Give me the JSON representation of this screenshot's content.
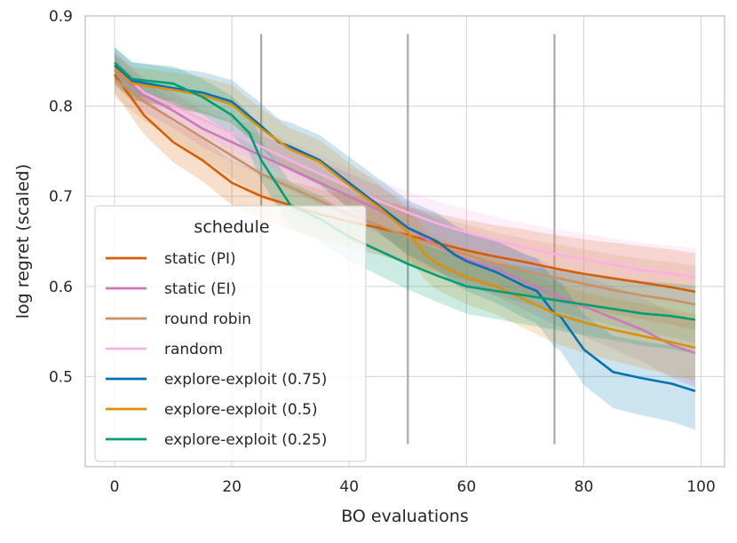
{
  "chart_data": {
    "type": "line",
    "xlabel": "BO evaluations",
    "ylabel": "log regret (scaled)",
    "xlim": [
      -5,
      104
    ],
    "ylim": [
      0.4,
      0.9
    ],
    "xticks": [
      0,
      20,
      40,
      60,
      80,
      100
    ],
    "yticks": [
      0.5,
      0.6,
      0.7,
      0.8,
      0.9
    ],
    "xtick_labels": [
      "0",
      "20",
      "40",
      "60",
      "80",
      "100"
    ],
    "ytick_labels": [
      "0.5",
      "0.6",
      "0.7",
      "0.8",
      "0.9"
    ],
    "grid": true,
    "vlines": {
      "x": [
        25,
        50,
        75
      ],
      "ymin": 0.425,
      "ymax": 0.88,
      "color": "#a8a8a8"
    },
    "legend": {
      "title": "schedule",
      "position": "lower-left"
    },
    "series": [
      {
        "name": "static (PI)",
        "color": "#d55e00",
        "x": [
          0,
          5,
          10,
          15,
          20,
          25,
          30,
          35,
          40,
          45,
          50,
          55,
          60,
          65,
          70,
          75,
          80,
          85,
          90,
          95,
          99
        ],
        "y": [
          0.835,
          0.79,
          0.76,
          0.74,
          0.715,
          0.7,
          0.69,
          0.68,
          0.672,
          0.665,
          0.657,
          0.648,
          0.64,
          0.633,
          0.627,
          0.62,
          0.614,
          0.609,
          0.604,
          0.599,
          0.594
        ],
        "band": 0.04
      },
      {
        "name": "static (EI)",
        "color": "#cc78bc",
        "x": [
          0,
          5,
          10,
          15,
          20,
          25,
          30,
          35,
          40,
          45,
          50,
          55,
          60,
          65,
          70,
          75,
          80,
          85,
          90,
          95,
          99
        ],
        "y": [
          0.84,
          0.812,
          0.795,
          0.775,
          0.76,
          0.745,
          0.73,
          0.715,
          0.7,
          0.685,
          0.665,
          0.645,
          0.63,
          0.62,
          0.605,
          0.59,
          0.578,
          0.565,
          0.552,
          0.535,
          0.526
        ],
        "band": 0.035
      },
      {
        "name": "round robin",
        "color": "#ca9161",
        "x": [
          0,
          5,
          10,
          15,
          20,
          25,
          30,
          35,
          40,
          45,
          50,
          55,
          60,
          65,
          70,
          75,
          80,
          85,
          90,
          95,
          99
        ],
        "y": [
          0.83,
          0.805,
          0.785,
          0.765,
          0.745,
          0.725,
          0.71,
          0.695,
          0.68,
          0.668,
          0.655,
          0.645,
          0.635,
          0.625,
          0.617,
          0.61,
          0.603,
          0.596,
          0.59,
          0.585,
          0.58
        ],
        "band": 0.04
      },
      {
        "name": "random",
        "color": "#fbafe4",
        "x": [
          0,
          5,
          10,
          15,
          20,
          25,
          30,
          35,
          40,
          45,
          50,
          55,
          60,
          65,
          70,
          75,
          80,
          85,
          90,
          95,
          99
        ],
        "y": [
          0.845,
          0.815,
          0.8,
          0.785,
          0.77,
          0.755,
          0.74,
          0.725,
          0.71,
          0.695,
          0.682,
          0.67,
          0.66,
          0.651,
          0.643,
          0.636,
          0.63,
          0.624,
          0.618,
          0.614,
          0.61
        ],
        "band": 0.03
      },
      {
        "name": "explore-exploit (0.75)",
        "color": "#0173b2",
        "x": [
          0,
          3,
          10,
          15,
          20,
          25,
          28,
          30,
          35,
          40,
          45,
          50,
          55,
          58,
          60,
          65,
          70,
          72,
          75,
          76,
          80,
          85,
          90,
          95,
          99
        ],
        "y": [
          0.845,
          0.828,
          0.82,
          0.815,
          0.805,
          0.778,
          0.76,
          0.755,
          0.74,
          0.715,
          0.69,
          0.665,
          0.65,
          0.635,
          0.628,
          0.616,
          0.6,
          0.595,
          0.57,
          0.567,
          0.53,
          0.505,
          0.498,
          0.492,
          0.484
        ],
        "band": 0.04
      },
      {
        "name": "explore-exploit (0.5)",
        "color": "#de8f05",
        "x": [
          0,
          3,
          10,
          15,
          20,
          25,
          30,
          35,
          40,
          45,
          50,
          53,
          55,
          60,
          65,
          70,
          75,
          80,
          85,
          90,
          95,
          99
        ],
        "y": [
          0.842,
          0.825,
          0.818,
          0.812,
          0.802,
          0.775,
          0.752,
          0.738,
          0.712,
          0.688,
          0.66,
          0.635,
          0.625,
          0.61,
          0.6,
          0.585,
          0.57,
          0.56,
          0.552,
          0.545,
          0.538,
          0.532
        ],
        "band": 0.035
      },
      {
        "name": "explore-exploit (0.25)",
        "color": "#029e73",
        "x": [
          0,
          3,
          10,
          15,
          20,
          23,
          25,
          28,
          30,
          35,
          40,
          45,
          50,
          55,
          60,
          65,
          70,
          75,
          80,
          85,
          90,
          95,
          99
        ],
        "y": [
          0.848,
          0.83,
          0.825,
          0.81,
          0.79,
          0.77,
          0.74,
          0.71,
          0.69,
          0.675,
          0.655,
          0.64,
          0.625,
          0.612,
          0.6,
          0.595,
          0.59,
          0.585,
          0.58,
          0.575,
          0.57,
          0.567,
          0.563
        ],
        "band": 0.035
      }
    ]
  }
}
